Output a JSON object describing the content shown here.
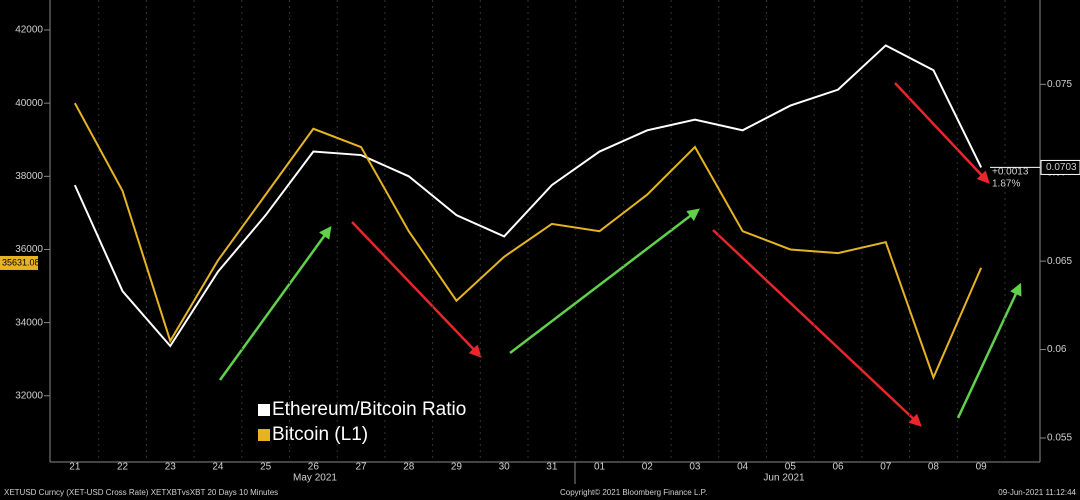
{
  "chart_data": {
    "type": "line",
    "categories": [
      "21",
      "22",
      "23",
      "24",
      "25",
      "26",
      "27",
      "28",
      "29",
      "30",
      "31",
      "01",
      "02",
      "03",
      "04",
      "05",
      "06",
      "07",
      "08",
      "09"
    ],
    "months": [
      "May 2021",
      "Jun 2021"
    ],
    "series": [
      {
        "name": "Ethereum/Bitcoin Ratio",
        "color": "#ffffff",
        "axis": "y2",
        "values": [
          0.0693,
          0.0633,
          0.0602,
          0.0644,
          0.0676,
          0.0712,
          0.071,
          0.0698,
          0.0676,
          0.0664,
          0.0693,
          0.0712,
          0.0724,
          0.073,
          0.0724,
          0.0738,
          0.0747,
          0.0772,
          0.0758,
          0.0703
        ]
      },
      {
        "name": "Bitcoin (L1)",
        "color": "#e6b422",
        "values": [
          40000,
          37600,
          33500,
          35700,
          37500,
          39300,
          38800,
          36500,
          34600,
          35800,
          36700,
          36500,
          37500,
          38800,
          36500,
          36000,
          35900,
          36200,
          32500,
          35500
        ]
      }
    ],
    "ylim": [
      30190,
      42820
    ],
    "yticks": [
      32000,
      34000,
      36000,
      38000,
      40000,
      42000
    ],
    "y2lim": [
      0.05364,
      0.07977
    ],
    "y2ticks": [
      0.055,
      0.06,
      0.065,
      0.07,
      0.075
    ],
    "last_values": [
      0.0703,
      35631.08
    ],
    "change_labels": [
      "+0.0013",
      "1.87%"
    ],
    "footer": [
      "XETUSD Curncy (XET-USD Cross Rate) XETXBTvsXBT 20 Days 10 Minutes",
      "Copyright© 2021 Bloomberg Finance L.P.",
      "09-Jun-2021 11:12:44"
    ]
  }
}
